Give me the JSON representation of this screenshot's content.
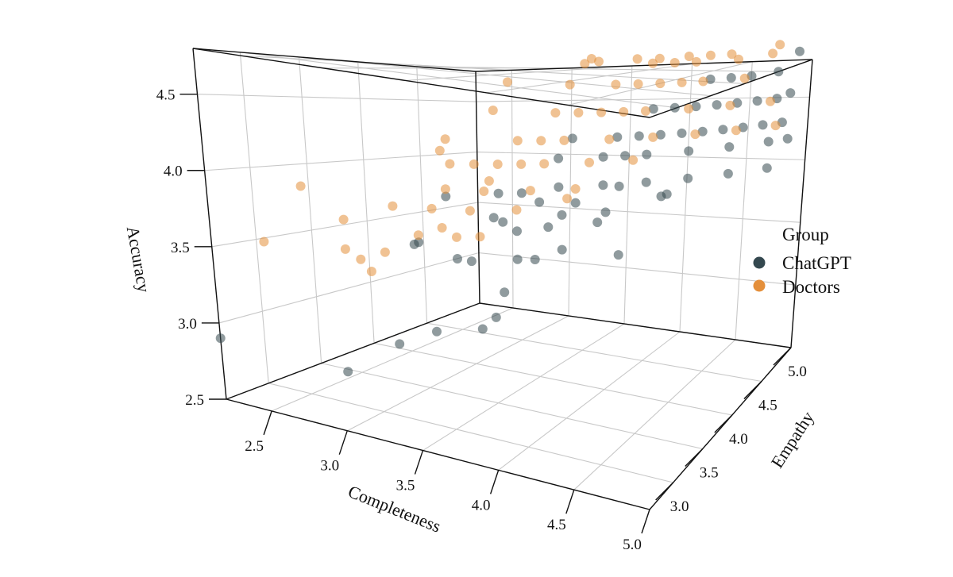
{
  "chart_data": {
    "type": "scatter",
    "dimensions": 3,
    "title": "",
    "xlabel": "Completeness",
    "ylabel": "Empathy",
    "zlabel": "Accuracy",
    "xlim": [
      2.2,
      5.0
    ],
    "ylim": [
      2.6,
      5.0
    ],
    "zlim": [
      2.5,
      4.8
    ],
    "x_ticks": [
      "2.5",
      "3.0",
      "3.5",
      "4.0",
      "4.5",
      "5.0"
    ],
    "y_ticks": [
      "3.0",
      "3.5",
      "4.0",
      "4.5",
      "5.0"
    ],
    "z_ticks": [
      "2.5",
      "3.0",
      "3.5",
      "4.0",
      "4.5"
    ],
    "grid": true,
    "point_opacity": 0.55,
    "legend": {
      "title": "Group",
      "placement": "right",
      "entries": [
        {
          "name": "ChatGPT",
          "color": "#34484f"
        },
        {
          "name": "Doctors",
          "color": "#e48f3b"
        }
      ]
    },
    "series": [
      {
        "name": "ChatGPT",
        "color": "#34484f",
        "points": [
          [
            2.2,
            2.6,
            2.9
          ],
          [
            2.9,
            2.8,
            2.8
          ],
          [
            3.0,
            3.2,
            2.9
          ],
          [
            3.2,
            3.3,
            3.0
          ],
          [
            3.5,
            3.5,
            3.1
          ],
          [
            3.4,
            3.5,
            3.0
          ],
          [
            3.6,
            3.8,
            3.45
          ],
          [
            3.5,
            3.6,
            3.25
          ],
          [
            3.0,
            3.4,
            3.55
          ],
          [
            3.1,
            3.3,
            3.6
          ],
          [
            3.3,
            3.4,
            3.5
          ],
          [
            3.4,
            3.4,
            3.5
          ],
          [
            3.6,
            3.6,
            3.5
          ],
          [
            3.8,
            3.8,
            3.55
          ],
          [
            4.1,
            4.0,
            3.5
          ],
          [
            3.3,
            3.3,
            3.95
          ],
          [
            3.5,
            3.6,
            3.75
          ],
          [
            3.6,
            3.6,
            3.7
          ],
          [
            3.7,
            3.8,
            3.7
          ],
          [
            3.8,
            3.8,
            3.8
          ],
          [
            4.0,
            4.0,
            3.8
          ],
          [
            3.5,
            3.5,
            3.8
          ],
          [
            3.7,
            3.7,
            3.9
          ],
          [
            3.9,
            3.8,
            3.9
          ],
          [
            4.1,
            4.0,
            4.0
          ],
          [
            4.3,
            4.2,
            3.9
          ],
          [
            4.0,
            3.9,
            3.75
          ],
          [
            3.6,
            3.4,
            4.0
          ],
          [
            3.7,
            3.5,
            4.0
          ],
          [
            3.9,
            3.6,
            4.05
          ],
          [
            4.1,
            3.8,
            4.05
          ],
          [
            4.3,
            4.0,
            4.05
          ],
          [
            4.5,
            4.2,
            4.05
          ],
          [
            4.7,
            4.4,
            4.05
          ],
          [
            4.9,
            4.6,
            4.05
          ],
          [
            4.4,
            4.1,
            3.95
          ],
          [
            3.9,
            3.6,
            4.25
          ],
          [
            4.1,
            3.8,
            4.25
          ],
          [
            4.3,
            4.0,
            4.25
          ],
          [
            4.5,
            4.2,
            4.25
          ],
          [
            4.7,
            4.4,
            4.25
          ],
          [
            4.9,
            4.6,
            4.25
          ],
          [
            5.0,
            4.7,
            4.25
          ],
          [
            4.2,
            3.9,
            4.25
          ],
          [
            4.0,
            3.6,
            4.4
          ],
          [
            4.2,
            3.8,
            4.4
          ],
          [
            4.4,
            4.0,
            4.4
          ],
          [
            4.6,
            4.2,
            4.4
          ],
          [
            4.8,
            4.4,
            4.4
          ],
          [
            5.0,
            4.6,
            4.4
          ],
          [
            4.3,
            3.9,
            4.4
          ],
          [
            4.5,
            4.1,
            4.4
          ],
          [
            4.7,
            4.3,
            4.4
          ],
          [
            4.9,
            4.5,
            4.4
          ],
          [
            4.4,
            3.9,
            4.6
          ],
          [
            4.6,
            4.1,
            4.6
          ],
          [
            4.8,
            4.3,
            4.6
          ],
          [
            5.0,
            4.5,
            4.6
          ],
          [
            4.5,
            4.0,
            4.6
          ],
          [
            4.7,
            4.2,
            4.6
          ],
          [
            4.9,
            4.4,
            4.6
          ],
          [
            5.0,
            4.7,
            4.6
          ],
          [
            4.7,
            4.1,
            4.8
          ],
          [
            4.9,
            4.3,
            4.8
          ],
          [
            5.0,
            4.5,
            4.8
          ],
          [
            4.8,
            4.2,
            4.8
          ],
          [
            5.0,
            4.8,
            4.9
          ]
        ]
      },
      {
        "name": "Doctors",
        "color": "#e48f3b",
        "points": [
          [
            2.4,
            2.8,
            3.55
          ],
          [
            2.8,
            3.0,
            3.75
          ],
          [
            2.9,
            3.1,
            3.4
          ],
          [
            2.6,
            2.9,
            3.95
          ],
          [
            2.8,
            3.0,
            3.55
          ],
          [
            2.9,
            3.0,
            3.5
          ],
          [
            3.0,
            3.1,
            3.55
          ],
          [
            3.1,
            3.3,
            3.65
          ],
          [
            3.2,
            3.4,
            3.7
          ],
          [
            3.3,
            3.4,
            3.65
          ],
          [
            3.4,
            3.5,
            3.65
          ],
          [
            3.0,
            3.2,
            3.85
          ],
          [
            3.2,
            3.3,
            3.85
          ],
          [
            3.4,
            3.4,
            3.85
          ],
          [
            3.6,
            3.6,
            3.85
          ],
          [
            3.3,
            3.3,
            4.0
          ],
          [
            3.5,
            3.4,
            4.0
          ],
          [
            3.7,
            3.6,
            4.0
          ],
          [
            3.9,
            3.8,
            4.0
          ],
          [
            3.4,
            3.2,
            4.2
          ],
          [
            3.6,
            3.4,
            4.2
          ],
          [
            3.8,
            3.6,
            4.2
          ],
          [
            4.0,
            3.8,
            4.2
          ],
          [
            4.2,
            4.0,
            4.2
          ],
          [
            3.5,
            3.3,
            4.2
          ],
          [
            3.7,
            3.5,
            4.2
          ],
          [
            3.4,
            3.1,
            4.3
          ],
          [
            3.5,
            3.0,
            4.4
          ],
          [
            3.8,
            3.3,
            4.4
          ],
          [
            4.0,
            3.5,
            4.4
          ],
          [
            4.2,
            3.7,
            4.4
          ],
          [
            4.4,
            3.9,
            4.4
          ],
          [
            4.6,
            4.1,
            4.4
          ],
          [
            4.8,
            4.3,
            4.4
          ],
          [
            5.0,
            4.5,
            4.4
          ],
          [
            3.9,
            3.4,
            4.4
          ],
          [
            3.7,
            3.2,
            4.6
          ],
          [
            4.0,
            3.4,
            4.6
          ],
          [
            4.2,
            3.6,
            4.6
          ],
          [
            4.4,
            3.8,
            4.6
          ],
          [
            4.6,
            4.0,
            4.6
          ],
          [
            4.8,
            4.2,
            4.6
          ],
          [
            5.0,
            4.4,
            4.6
          ],
          [
            4.1,
            3.5,
            4.6
          ],
          [
            4.3,
            3.7,
            4.6
          ],
          [
            3.8,
            3.2,
            4.8
          ],
          [
            4.1,
            3.4,
            4.8
          ],
          [
            4.3,
            3.6,
            4.8
          ],
          [
            4.5,
            3.8,
            4.8
          ],
          [
            4.7,
            4.0,
            4.8
          ],
          [
            4.9,
            4.2,
            4.8
          ],
          [
            4.4,
            3.7,
            4.8
          ],
          [
            4.6,
            3.9,
            4.8
          ],
          [
            4.2,
            3.4,
            4.95
          ],
          [
            4.5,
            3.7,
            4.95
          ],
          [
            4.7,
            3.9,
            4.95
          ],
          [
            4.9,
            4.1,
            4.95
          ],
          [
            4.6,
            3.8,
            4.95
          ],
          [
            5.0,
            4.4,
            4.95
          ],
          [
            4.3,
            3.3,
            5.0
          ],
          [
            4.5,
            3.5,
            5.0
          ],
          [
            4.7,
            3.8,
            5.0
          ],
          [
            4.9,
            4.0,
            5.0
          ],
          [
            5.0,
            4.5,
            5.0
          ],
          [
            4.8,
            3.9,
            5.0
          ],
          [
            4.4,
            3.2,
            5.0
          ],
          [
            4.6,
            3.6,
            5.0
          ],
          [
            3.9,
            3.7,
            3.95
          ],
          [
            3.6,
            3.3,
            4.1
          ]
        ]
      }
    ]
  }
}
